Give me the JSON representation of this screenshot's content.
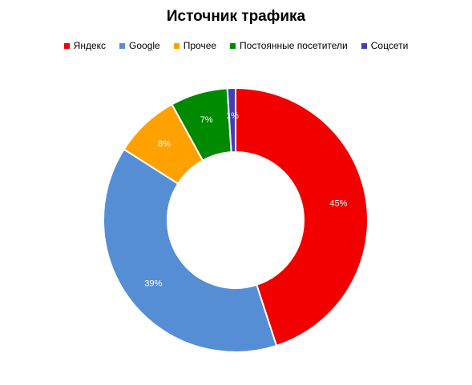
{
  "chart_data": {
    "type": "pie",
    "variant": "donut",
    "title": "Источник трафика",
    "legend_position": "top",
    "categories": [
      "Яндекс",
      "Google",
      "Прочее",
      "Постоянные посетители",
      "Соцсети"
    ],
    "values": [
      45,
      39,
      8,
      7,
      1
    ],
    "labels": [
      "45%",
      "39%",
      "8%",
      "7%",
      "1%"
    ],
    "colors": [
      "#f20000",
      "#558ed5",
      "#ffa100",
      "#008a00",
      "#3f3fb6"
    ]
  }
}
